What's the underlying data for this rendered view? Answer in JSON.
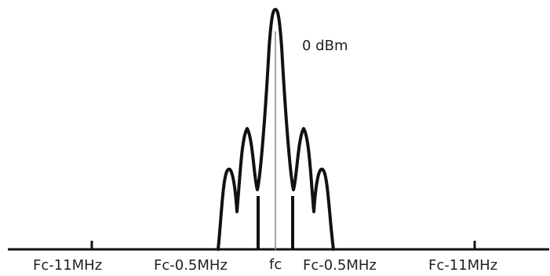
{
  "diagram": {
    "peak_label": "0 dBm",
    "center_label": "fc",
    "axis_labels": {
      "far_left": "Fc-11MHz",
      "near_left": "Fc-0.5MHz",
      "near_right": "Fc-0.5MHz",
      "far_right": "Fc-11MHz"
    },
    "colors": {
      "stroke": "#111111",
      "center_line": "#888888",
      "text": "#222222"
    }
  }
}
